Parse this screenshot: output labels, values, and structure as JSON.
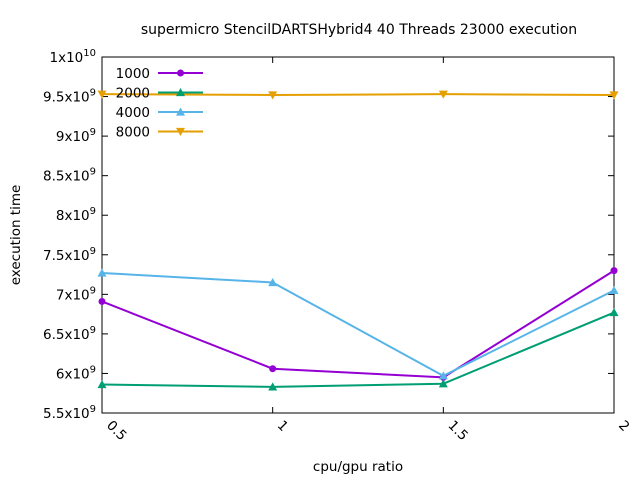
{
  "chart_data": {
    "type": "line",
    "title": "supermicro StencilDARTSHybrid4 40 Threads 23000 execution",
    "xlabel": "cpu/gpu ratio",
    "ylabel": "execution time",
    "x": [
      0.5,
      1,
      1.5,
      2
    ],
    "x_tick_labels": [
      "0.5",
      "1",
      "1.5",
      "2"
    ],
    "xlim": [
      0.5,
      2
    ],
    "ylim": [
      5500000000,
      10000000000
    ],
    "y_ticks": [
      {
        "value": 5500000000,
        "mantissa": "5.5",
        "base": "x10",
        "exp": "9"
      },
      {
        "value": 6000000000,
        "mantissa": "6",
        "base": "x10",
        "exp": "9"
      },
      {
        "value": 6500000000,
        "mantissa": "6.5",
        "base": "x10",
        "exp": "9"
      },
      {
        "value": 7000000000,
        "mantissa": "7",
        "base": "x10",
        "exp": "9"
      },
      {
        "value": 7500000000,
        "mantissa": "7.5",
        "base": "x10",
        "exp": "9"
      },
      {
        "value": 8000000000,
        "mantissa": "8",
        "base": "x10",
        "exp": "9"
      },
      {
        "value": 8500000000,
        "mantissa": "8.5",
        "base": "x10",
        "exp": "9"
      },
      {
        "value": 9000000000,
        "mantissa": "9",
        "base": "x10",
        "exp": "9"
      },
      {
        "value": 9500000000,
        "mantissa": "9.5",
        "base": "x10",
        "exp": "9"
      },
      {
        "value": 10000000000,
        "mantissa": "1",
        "base": "x10",
        "exp": "10"
      }
    ],
    "grid": false,
    "legend_position": "top-left",
    "series": [
      {
        "name": "1000",
        "color": "#9400d3",
        "marker": "circle",
        "values": [
          6910000000,
          6060000000,
          5950000000,
          7300000000
        ]
      },
      {
        "name": "2000",
        "color": "#009e73",
        "marker": "triangle-up",
        "values": [
          5860000000,
          5830000000,
          5870000000,
          6770000000
        ]
      },
      {
        "name": "4000",
        "color": "#56b4e9",
        "marker": "triangle-up",
        "values": [
          7270000000,
          7150000000,
          5970000000,
          7050000000
        ]
      },
      {
        "name": "8000",
        "color": "#e69f00",
        "marker": "triangle-down",
        "values": [
          9530000000,
          9520000000,
          9530000000,
          9520000000
        ]
      }
    ]
  }
}
